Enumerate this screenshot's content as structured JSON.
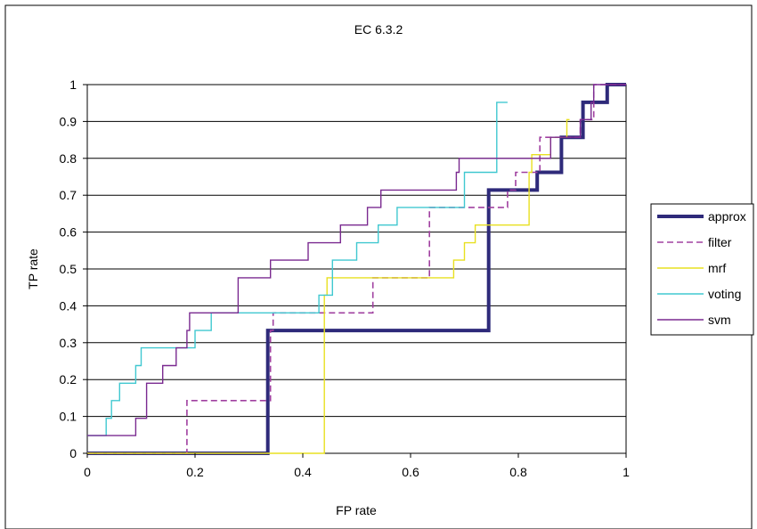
{
  "chart_data": {
    "type": "line",
    "title": "EC 6.3.2",
    "xlabel": "FP rate",
    "ylabel": "TP rate",
    "xlim": [
      0,
      1
    ],
    "ylim": [
      0,
      1
    ],
    "xticks": [
      0,
      0.2,
      0.4,
      0.6,
      0.8,
      1
    ],
    "yticks": [
      0,
      0.1,
      0.2,
      0.3,
      0.4,
      0.5,
      0.6,
      0.7,
      0.8,
      0.9,
      1
    ],
    "xtick_labels": [
      "0",
      "0.2",
      "0.4",
      "0.6",
      "0.8",
      "1"
    ],
    "ytick_labels": [
      "0",
      "0.1",
      "0.2",
      "0.3",
      "0.4",
      "0.5",
      "0.6",
      "0.7",
      "0.8",
      "0.9",
      "1"
    ],
    "grid": "horizontal",
    "legend_position": "right",
    "series": [
      {
        "name": "approx",
        "color": "#2e2a7a",
        "style": "solid-thick",
        "x": [
          0,
          0.335,
          0.335,
          0.745,
          0.745,
          0.835,
          0.835,
          0.88,
          0.88,
          0.92,
          0.92,
          0.965,
          0.965,
          1
        ],
        "y": [
          0,
          0,
          0.333,
          0.333,
          0.714,
          0.714,
          0.762,
          0.762,
          0.857,
          0.857,
          0.952,
          0.952,
          1,
          1
        ]
      },
      {
        "name": "filter",
        "color": "#a040a0",
        "style": "dashed",
        "x": [
          0,
          0.185,
          0.185,
          0.34,
          0.34,
          0.345,
          0.345,
          0.53,
          0.53,
          0.635,
          0.635,
          0.74,
          0.74,
          0.78,
          0.78,
          0.795,
          0.795,
          0.8,
          0.8,
          0.84,
          0.84,
          0.87,
          0.87,
          0.905,
          0.905,
          0.915,
          0.915,
          0.94,
          0.94,
          1
        ],
        "y": [
          0,
          0,
          0.143,
          0.143,
          0.333,
          0.333,
          0.381,
          0.381,
          0.476,
          0.476,
          0.667,
          0.667,
          0.667,
          0.667,
          0.714,
          0.714,
          0.762,
          0.762,
          0.762,
          0.762,
          0.857,
          0.857,
          0.857,
          0.857,
          0.857,
          0.857,
          0.905,
          0.905,
          1,
          1
        ]
      },
      {
        "name": "mrf",
        "color": "#e8e020",
        "style": "solid",
        "x": [
          0,
          0.44,
          0.44,
          0.445,
          0.445,
          0.675,
          0.675,
          0.67,
          0.67,
          0.68,
          0.68,
          0.7,
          0.7,
          0.72,
          0.72,
          0.76,
          0.76,
          0.82,
          0.82,
          0.825,
          0.825,
          0.855,
          0.855,
          0.86,
          0.86,
          0.89,
          0.89,
          0.895
        ],
        "y": [
          0,
          0,
          0.429,
          0.429,
          0.476,
          0.476,
          0.476,
          0.476,
          0.476,
          0.476,
          0.524,
          0.524,
          0.571,
          0.571,
          0.619,
          0.619,
          0.619,
          0.619,
          0.762,
          0.762,
          0.81,
          0.81,
          0.81,
          0.81,
          0.857,
          0.857,
          0.905,
          0.905
        ]
      },
      {
        "name": "voting",
        "color": "#40c8d0",
        "style": "solid",
        "x": [
          0,
          0.02,
          0.02,
          0.035,
          0.035,
          0.045,
          0.045,
          0.06,
          0.06,
          0.09,
          0.09,
          0.1,
          0.1,
          0.165,
          0.165,
          0.2,
          0.2,
          0.215,
          0.215,
          0.23,
          0.23,
          0.34,
          0.34,
          0.43,
          0.43,
          0.455,
          0.455,
          0.48,
          0.48,
          0.5,
          0.5,
          0.54,
          0.54,
          0.575,
          0.575,
          0.7,
          0.7,
          0.76,
          0.76,
          0.78
        ],
        "y": [
          0.048,
          0.048,
          0.048,
          0.048,
          0.095,
          0.095,
          0.143,
          0.143,
          0.19,
          0.19,
          0.238,
          0.238,
          0.286,
          0.286,
          0.286,
          0.286,
          0.333,
          0.333,
          0.333,
          0.333,
          0.381,
          0.381,
          0.381,
          0.381,
          0.429,
          0.429,
          0.524,
          0.524,
          0.524,
          0.524,
          0.571,
          0.571,
          0.619,
          0.619,
          0.667,
          0.667,
          0.762,
          0.762,
          0.952,
          0.952
        ]
      },
      {
        "name": "svm",
        "color": "#7a2a90",
        "style": "solid",
        "x": [
          0,
          0.09,
          0.09,
          0.11,
          0.11,
          0.14,
          0.14,
          0.165,
          0.165,
          0.175,
          0.175,
          0.185,
          0.185,
          0.19,
          0.19,
          0.205,
          0.205,
          0.28,
          0.28,
          0.34,
          0.34,
          0.345,
          0.345,
          0.41,
          0.41,
          0.45,
          0.45,
          0.47,
          0.47,
          0.52,
          0.52,
          0.545,
          0.545,
          0.555,
          0.555,
          0.685,
          0.685,
          0.69,
          0.69,
          0.7,
          0.7,
          0.8,
          0.8,
          0.86,
          0.86,
          0.9,
          0.9,
          0.915,
          0.915,
          0.935,
          0.935,
          0.94,
          0.94,
          0.95,
          0.95,
          1
        ],
        "y": [
          0.048,
          0.048,
          0.095,
          0.095,
          0.19,
          0.19,
          0.238,
          0.238,
          0.286,
          0.286,
          0.286,
          0.286,
          0.333,
          0.333,
          0.381,
          0.381,
          0.381,
          0.381,
          0.476,
          0.476,
          0.524,
          0.524,
          0.524,
          0.524,
          0.571,
          0.571,
          0.571,
          0.571,
          0.619,
          0.619,
          0.667,
          0.667,
          0.714,
          0.714,
          0.714,
          0.714,
          0.762,
          0.762,
          0.8,
          0.8,
          0.8,
          0.8,
          0.8,
          0.8,
          0.857,
          0.857,
          0.857,
          0.857,
          0.905,
          0.905,
          0.952,
          0.952,
          1,
          1,
          1,
          1
        ]
      }
    ]
  }
}
